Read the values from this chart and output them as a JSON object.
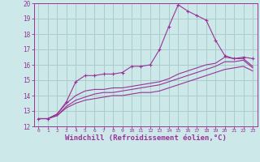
{
  "background_color": "#cce8e8",
  "grid_color": "#aacccc",
  "line_color": "#993399",
  "xlabel": "Windchill (Refroidissement éolien,°C)",
  "xlim": [
    -0.5,
    23.5
  ],
  "ylim": [
    12,
    20
  ],
  "xticks": [
    0,
    1,
    2,
    3,
    4,
    5,
    6,
    7,
    8,
    9,
    10,
    11,
    12,
    13,
    14,
    15,
    16,
    17,
    18,
    19,
    20,
    21,
    22,
    23
  ],
  "yticks": [
    12,
    13,
    14,
    15,
    16,
    17,
    18,
    19,
    20
  ],
  "line1_x": [
    0,
    1,
    2,
    3,
    4,
    5,
    6,
    7,
    8,
    9,
    10,
    11,
    12,
    13,
    14,
    15,
    16,
    17,
    18,
    19,
    20,
    21,
    22,
    23
  ],
  "line1_y": [
    12.5,
    12.5,
    12.8,
    13.6,
    14.9,
    15.3,
    15.3,
    15.4,
    15.4,
    15.5,
    15.9,
    15.9,
    16.0,
    17.0,
    18.5,
    19.9,
    19.5,
    19.2,
    18.9,
    17.6,
    16.6,
    16.4,
    16.5,
    16.4
  ],
  "line2_x": [
    0,
    1,
    2,
    3,
    4,
    5,
    6,
    7,
    8,
    9,
    10,
    11,
    12,
    13,
    14,
    15,
    16,
    17,
    18,
    19,
    20,
    21,
    22,
    23
  ],
  "line2_y": [
    12.5,
    12.5,
    12.8,
    13.5,
    14.0,
    14.3,
    14.4,
    14.4,
    14.5,
    14.5,
    14.6,
    14.7,
    14.8,
    14.9,
    15.1,
    15.4,
    15.6,
    15.8,
    16.0,
    16.1,
    16.5,
    16.4,
    16.4,
    15.9
  ],
  "line3_x": [
    0,
    1,
    2,
    3,
    4,
    5,
    6,
    7,
    8,
    9,
    10,
    11,
    12,
    13,
    14,
    15,
    16,
    17,
    18,
    19,
    20,
    21,
    22,
    23
  ],
  "line3_y": [
    12.5,
    12.5,
    12.7,
    13.3,
    13.7,
    13.9,
    14.1,
    14.2,
    14.2,
    14.3,
    14.4,
    14.5,
    14.6,
    14.7,
    14.9,
    15.1,
    15.3,
    15.5,
    15.7,
    15.9,
    16.2,
    16.2,
    16.3,
    15.8
  ],
  "line4_x": [
    0,
    1,
    2,
    3,
    4,
    5,
    6,
    7,
    8,
    9,
    10,
    11,
    12,
    13,
    14,
    15,
    16,
    17,
    18,
    19,
    20,
    21,
    22,
    23
  ],
  "line4_y": [
    12.5,
    12.5,
    12.7,
    13.2,
    13.5,
    13.7,
    13.8,
    13.9,
    14.0,
    14.0,
    14.1,
    14.2,
    14.2,
    14.3,
    14.5,
    14.7,
    14.9,
    15.1,
    15.3,
    15.5,
    15.7,
    15.8,
    15.9,
    15.6
  ]
}
